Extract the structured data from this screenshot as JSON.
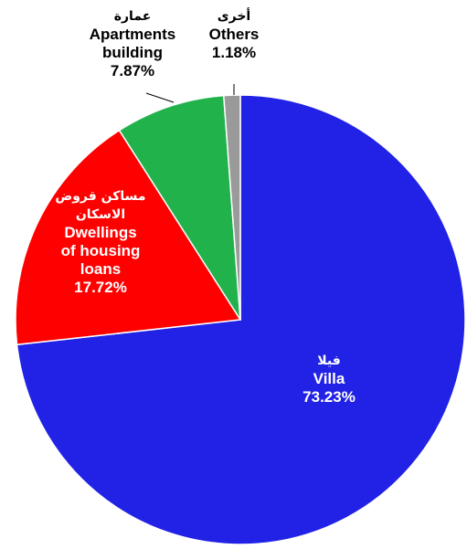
{
  "chart_data": {
    "type": "pie",
    "categories": [
      "Villa",
      "Dwellings of housing loans",
      "Apartments building",
      "Others"
    ],
    "categories_arabic": [
      "فيلا",
      "مساكن قروض الاسكان",
      "عمارة",
      "أخرى"
    ],
    "values": [
      73.23,
      17.72,
      7.87,
      1.18
    ],
    "value_labels": [
      "73.23%",
      "17.72%",
      "7.87%",
      "1.18%"
    ],
    "colors": [
      "#2222e6",
      "#ff0000",
      "#22b24c",
      "#9a9a9a"
    ],
    "label_colors": [
      "#ffffff",
      "#ffffff",
      "#000000",
      "#000000"
    ]
  }
}
